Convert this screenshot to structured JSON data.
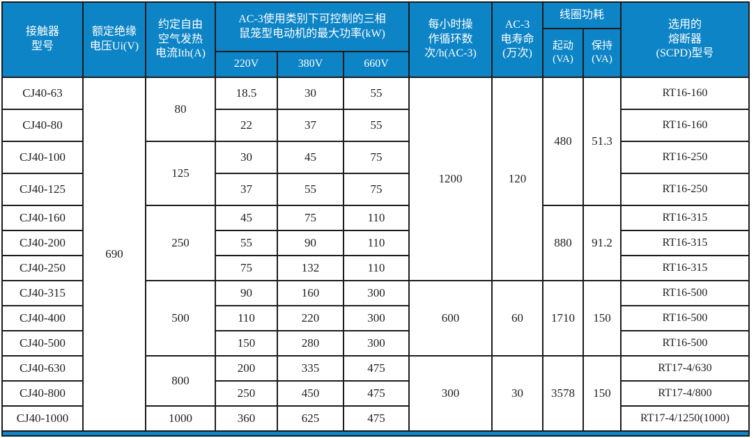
{
  "colors": {
    "header_bg": "#0c84c6",
    "header_text": "#ffffff",
    "grid_line": "#1b1b1b",
    "body_text": "#1f1f1f",
    "bottom_strip": "#0c84c6"
  },
  "header": {
    "contactor_model": "接触器\n型号",
    "rated_insulation_voltage": "额定绝缘\n电压Ui(V)",
    "thermal_current": "约定自由\n空气发热\n电流Ith(A)",
    "max_power_group": "AC-3使用类别下可控制的三相\n鼠笼型电动机的最大功率(kW)",
    "v220": "220V",
    "v380": "380V",
    "v660": "660V",
    "cycles_per_hour": "每小时操\n作循环数\n次/h(AC-3)",
    "electrical_life": "AC-3\n电寿命\n(万次)",
    "coil_power_group": "线圈功耗",
    "start_va": "起动\n(VA)",
    "hold_va": "保持\n(VA)",
    "fuse_model": "选用的\n熔断器\n(SCPD)型号"
  },
  "merged": {
    "ui_voltage": "690",
    "ith": [
      "80",
      "125",
      "250",
      "500",
      "800",
      "1000"
    ],
    "cycles": [
      "1200",
      "600",
      "300"
    ],
    "life": [
      "120",
      "60",
      "30"
    ],
    "start_va": [
      "480",
      "880",
      "1710",
      "3578"
    ],
    "hold_va": [
      "51.3",
      "91.2",
      "150",
      "150"
    ]
  },
  "rows": [
    {
      "model": "CJ40-63",
      "p220": "18.5",
      "p380": "30",
      "p660": "55",
      "fuse": "RT16-160"
    },
    {
      "model": "CJ40-80",
      "p220": "22",
      "p380": "37",
      "p660": "55",
      "fuse": "RT16-160"
    },
    {
      "model": "CJ40-100",
      "p220": "30",
      "p380": "45",
      "p660": "75",
      "fuse": "RT16-250"
    },
    {
      "model": "CJ40-125",
      "p220": "37",
      "p380": "55",
      "p660": "75",
      "fuse": "RT16-250"
    },
    {
      "model": "CJ40-160",
      "p220": "45",
      "p380": "75",
      "p660": "110",
      "fuse": "RT16-315"
    },
    {
      "model": "CJ40-200",
      "p220": "55",
      "p380": "90",
      "p660": "110",
      "fuse": "RT16-315"
    },
    {
      "model": "CJ40-250",
      "p220": "75",
      "p380": "132",
      "p660": "110",
      "fuse": "RT16-315"
    },
    {
      "model": "CJ40-315",
      "p220": "90",
      "p380": "160",
      "p660": "300",
      "fuse": "RT16-500"
    },
    {
      "model": "CJ40-400",
      "p220": "110",
      "p380": "220",
      "p660": "300",
      "fuse": "RT16-500"
    },
    {
      "model": "CJ40-500",
      "p220": "150",
      "p380": "280",
      "p660": "300",
      "fuse": "RT16-500"
    },
    {
      "model": "CJ40-630",
      "p220": "200",
      "p380": "335",
      "p660": "475",
      "fuse": "RT17-4/630"
    },
    {
      "model": "CJ40-800",
      "p220": "250",
      "p380": "450",
      "p660": "475",
      "fuse": "RT17-4/800"
    },
    {
      "model": "CJ40-1000",
      "p220": "360",
      "p380": "625",
      "p660": "475",
      "fuse": "RT17-4/1250(1000)"
    }
  ]
}
